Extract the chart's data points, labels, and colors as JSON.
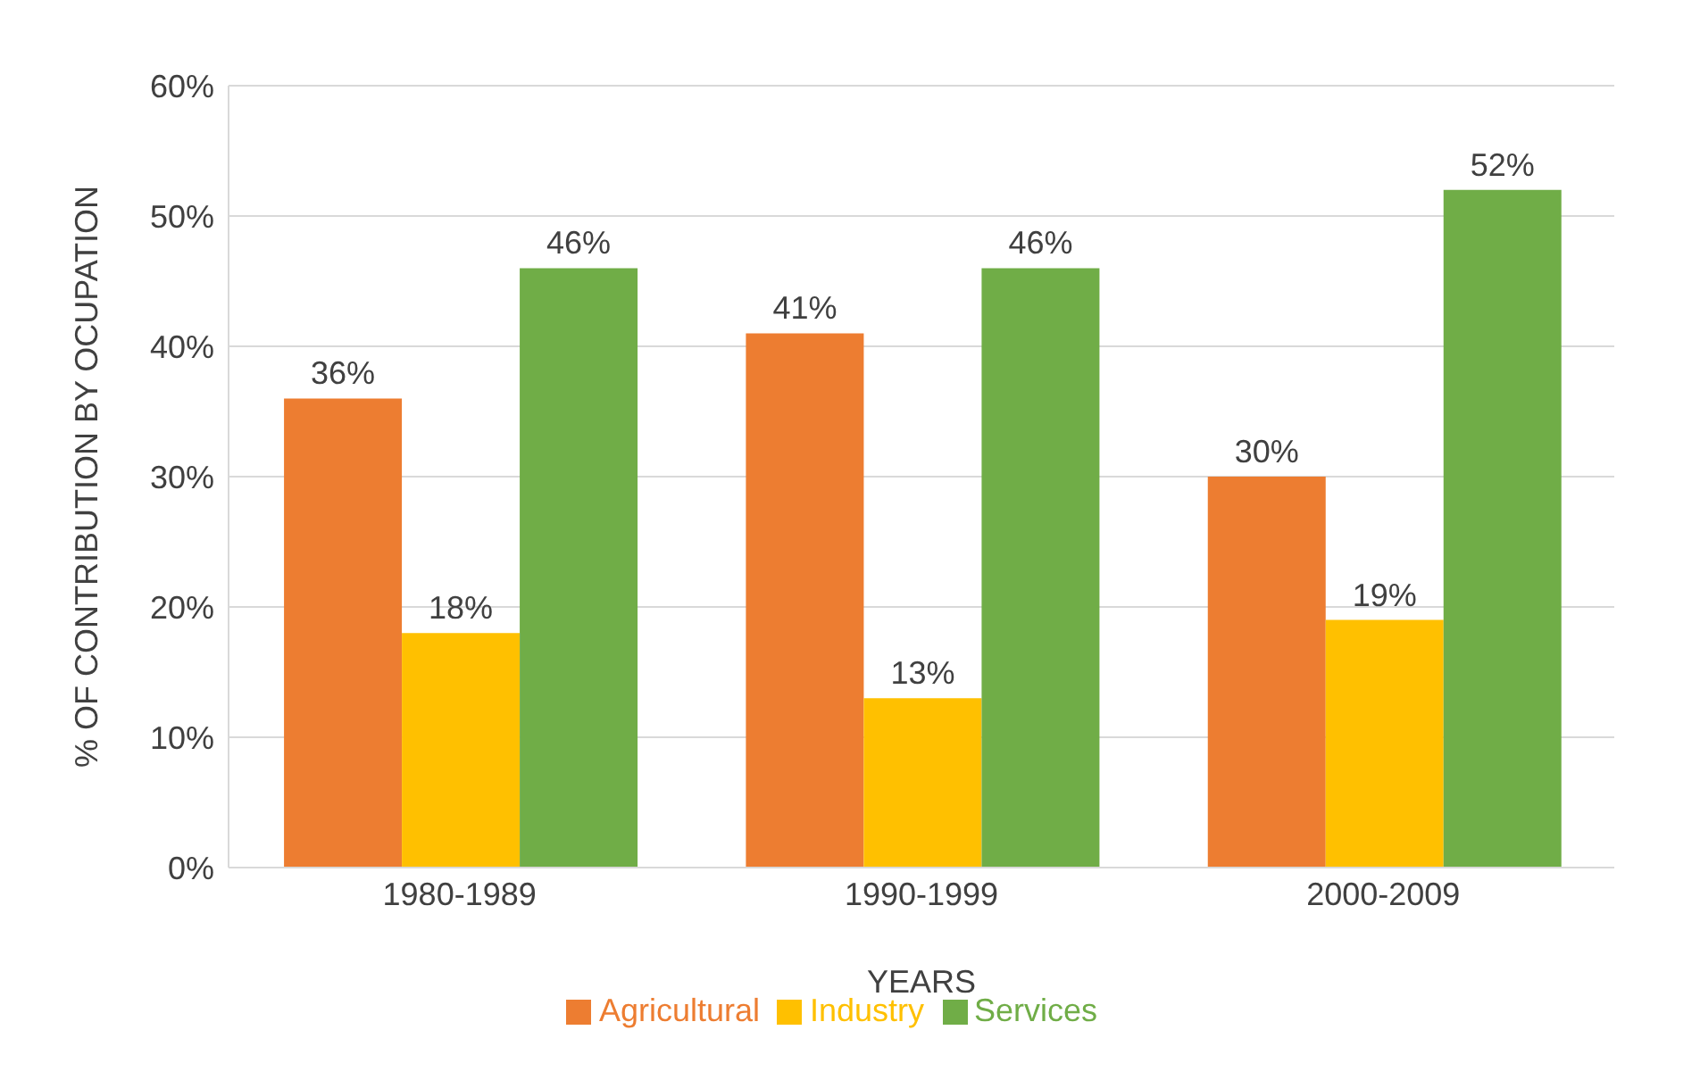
{
  "chart_data": {
    "type": "bar",
    "xlabel": "YEARS",
    "ylabel": "% OF CONTRIBUTION BY OCUPATION",
    "categories": [
      "1980-1989",
      "1990-1999",
      "2000-2009"
    ],
    "series": [
      {
        "name": "Agricultural",
        "color": "#ed7d31",
        "values": [
          36,
          41,
          30
        ],
        "value_labels": [
          "36%",
          "41%",
          "30%"
        ]
      },
      {
        "name": "Industry",
        "color": "#ffc000",
        "values": [
          18,
          13,
          19
        ],
        "value_labels": [
          "18%",
          "13%",
          "19%"
        ]
      },
      {
        "name": "Services",
        "color": "#70ad47",
        "values": [
          46,
          46,
          52
        ],
        "value_labels": [
          "46%",
          "46%",
          "52%"
        ]
      }
    ],
    "ylim": [
      0,
      60
    ],
    "yticks": [
      {
        "value": 0,
        "label": "0%"
      },
      {
        "value": 10,
        "label": "10%"
      },
      {
        "value": 20,
        "label": "20%"
      },
      {
        "value": 30,
        "label": "30%"
      },
      {
        "value": 40,
        "label": "40%"
      },
      {
        "value": 50,
        "label": "50%"
      },
      {
        "value": 60,
        "label": "60%"
      }
    ],
    "grid": "y",
    "legend": "bottom"
  }
}
